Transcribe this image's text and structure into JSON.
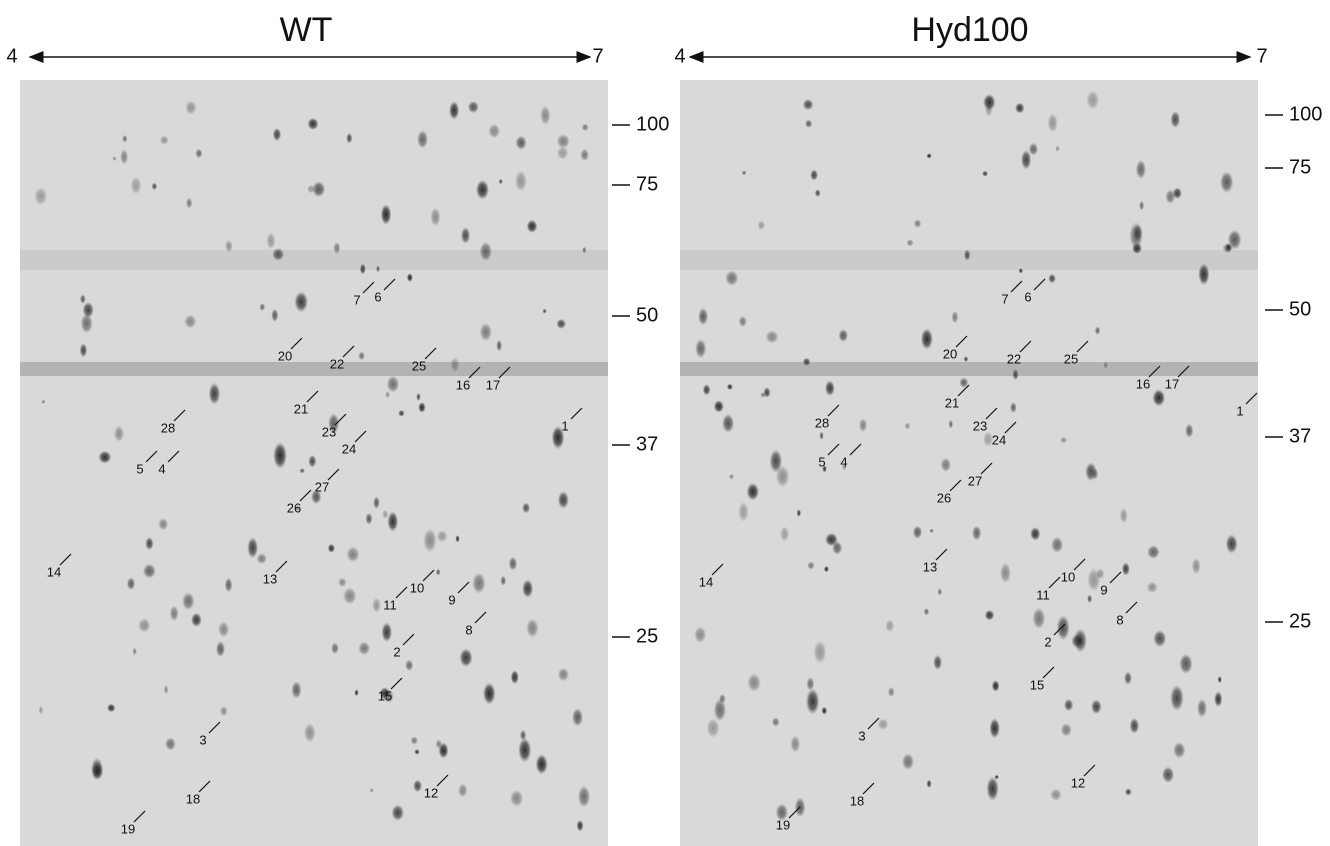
{
  "panels": [
    {
      "title": "WT",
      "ph_start": 4,
      "ph_end": 7,
      "mw_markers": [
        100,
        75,
        50,
        37,
        25
      ],
      "spots": [
        "1",
        "2",
        "3",
        "4",
        "5",
        "6",
        "7",
        "8",
        "9",
        "10",
        "11",
        "12",
        "13",
        "14",
        "15",
        "16",
        "17",
        "18",
        "19",
        "20",
        "21",
        "22",
        "23",
        "24",
        "25",
        "26",
        "27",
        "28"
      ]
    },
    {
      "title": "Hyd100",
      "ph_start": 4,
      "ph_end": 7,
      "mw_markers": [
        100,
        75,
        50,
        37,
        25
      ],
      "spots": [
        "1",
        "2",
        "3",
        "4",
        "5",
        "6",
        "7",
        "8",
        "9",
        "10",
        "11",
        "12",
        "13",
        "14",
        "15",
        "16",
        "17",
        "18",
        "19",
        "20",
        "21",
        "22",
        "23",
        "24",
        "25",
        "26",
        "27",
        "28"
      ]
    }
  ]
}
